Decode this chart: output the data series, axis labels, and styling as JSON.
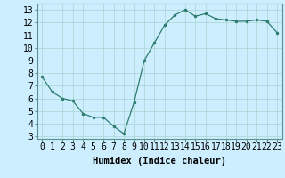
{
  "x": [
    0,
    1,
    2,
    3,
    4,
    5,
    6,
    7,
    8,
    9,
    10,
    11,
    12,
    13,
    14,
    15,
    16,
    17,
    18,
    19,
    20,
    21,
    22,
    23
  ],
  "y": [
    7.7,
    6.5,
    6.0,
    5.8,
    4.8,
    4.5,
    4.5,
    3.8,
    3.2,
    5.7,
    9.0,
    10.4,
    11.8,
    12.6,
    13.0,
    12.5,
    12.7,
    12.3,
    12.2,
    12.1,
    12.1,
    12.2,
    12.1,
    11.2
  ],
  "line_color": "#2e7d6e",
  "marker": ".",
  "marker_size": 3,
  "bg_color": "#cceeff",
  "grid_color": "#b0d8d8",
  "xlabel": "Humidex (Indice chaleur)",
  "xlim": [
    -0.5,
    23.5
  ],
  "ylim": [
    2.8,
    13.5
  ],
  "yticks": [
    3,
    4,
    5,
    6,
    7,
    8,
    9,
    10,
    11,
    12,
    13
  ],
  "tick_fontsize": 7,
  "xlabel_fontsize": 7.5,
  "linewidth": 0.9
}
